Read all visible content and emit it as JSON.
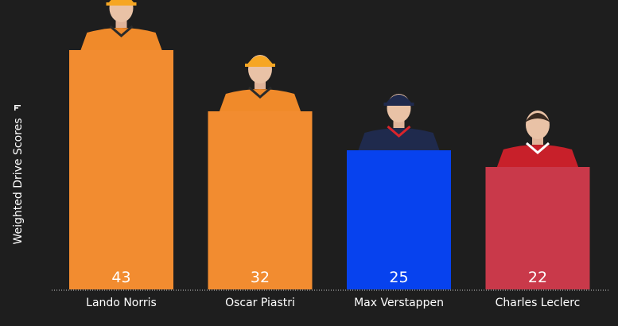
{
  "chart_data": {
    "type": "bar",
    "categories": [
      "Lando Norris",
      "Oscar Piastri",
      "Max Verstappen",
      "Charles Leclerc"
    ],
    "values": [
      43,
      32,
      25,
      22
    ],
    "ylabel": "Weighted Drive Scores",
    "ylim": [
      0,
      50
    ],
    "grid": false,
    "legend": "none",
    "colors": [
      "#f28c30",
      "#f28c30",
      "#0742ee",
      "#c9394a"
    ],
    "icons": [
      "driver-photo-papaya-suit",
      "driver-photo-papaya-suit",
      "driver-photo-navy-suit",
      "driver-photo-red-suit"
    ]
  },
  "colors": {
    "background": "#1e1e1e",
    "text": "#ffffff",
    "axis": "#cccccc"
  }
}
